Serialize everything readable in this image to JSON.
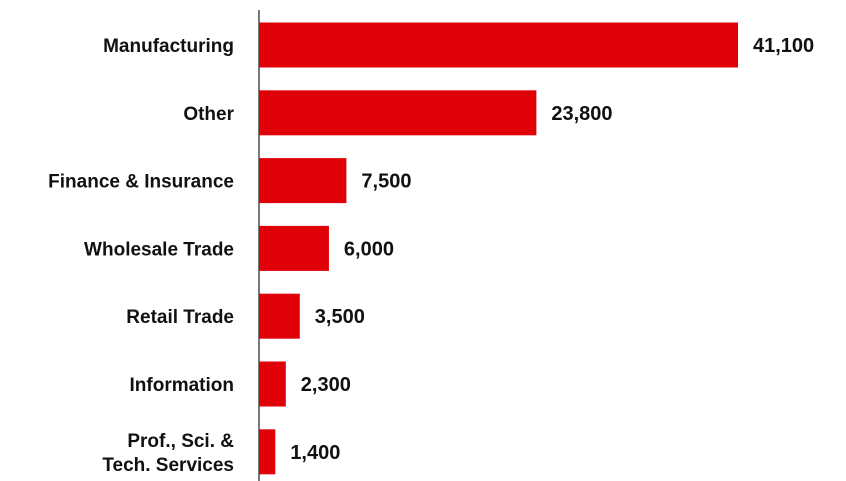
{
  "chart_data": {
    "type": "bar",
    "orientation": "horizontal",
    "categories": [
      "Manufacturing",
      "Other",
      "Finance & Insurance",
      "Wholesale Trade",
      "Retail Trade",
      "Information",
      "Prof., Sci. & Tech. Services"
    ],
    "category_lines": [
      [
        "Manufacturing"
      ],
      [
        "Other"
      ],
      [
        "Finance & Insurance"
      ],
      [
        "Wholesale Trade"
      ],
      [
        "Retail Trade"
      ],
      [
        "Information"
      ],
      [
        "Prof., Sci. &",
        "Tech. Services"
      ]
    ],
    "values": [
      41100,
      23800,
      7500,
      6000,
      3500,
      2300,
      1400
    ],
    "value_labels": [
      "41,100",
      "23,800",
      "7,500",
      "6,000",
      "3,500",
      "2,300",
      "1,400"
    ],
    "bar_color": "#e00008",
    "xlim": [
      0,
      41100
    ],
    "grid": false,
    "legend": "none"
  }
}
